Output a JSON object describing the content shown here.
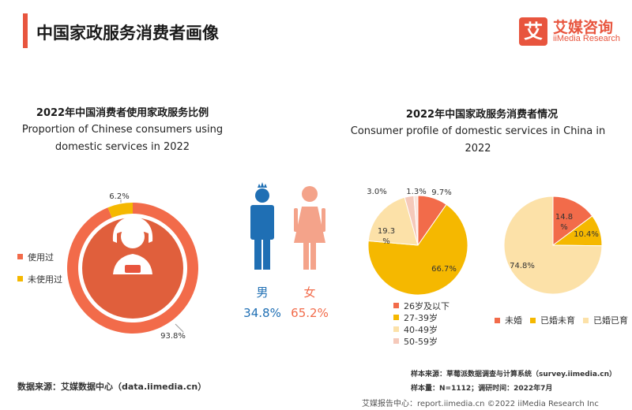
{
  "page": {
    "title": "中国家政服务消费者画像"
  },
  "brand": {
    "logo_char": "艾",
    "name_cn": "艾媒咨询",
    "name_en": "iiMedia Research"
  },
  "colors": {
    "accent": "#E8553E",
    "orange": "#F26B4A",
    "gold": "#F5B800",
    "light_gold": "#FCE1A8",
    "pale_pink": "#F5C9BA",
    "male_blue": "#1F6FB4",
    "female_pink": "#F4A38A"
  },
  "left_panel": {
    "title": "2022年中国消费者使用家政服务比例",
    "subtitle_line1": "Proportion of Chinese consumers using",
    "subtitle_line2": "domestic services in 2022",
    "legend": [
      "使用过",
      "未使用过"
    ]
  },
  "right_panel": {
    "title": "2022年中国家政服务消费者情况",
    "subtitle": "Consumer profile of domestic services in China in 2022",
    "age_legend": [
      "26岁及以下",
      "27-39岁",
      "40-49岁",
      "50-59岁"
    ],
    "marital_legend": [
      "未婚",
      "已婚未育",
      "已婚已育"
    ]
  },
  "gender": {
    "male_label": "男",
    "male_pct": "34.8%",
    "female_label": "女",
    "female_pct": "65.2%"
  },
  "chart_data": [
    {
      "type": "pie",
      "title": "2022年中国消费者使用家政服务比例",
      "categories": [
        "使用过",
        "未使用过"
      ],
      "values": [
        93.8,
        6.2
      ],
      "labels": [
        "93.8%",
        "6.2%"
      ]
    },
    {
      "type": "pie",
      "categories": [
        "男",
        "女"
      ],
      "values": [
        34.8,
        65.2
      ]
    },
    {
      "type": "pie",
      "categories": [
        "26岁及以下",
        "27-39岁",
        "40-49岁",
        "50-59岁",
        ""
      ],
      "values": [
        9.7,
        66.7,
        19.3,
        3.0,
        1.3
      ],
      "labels": [
        "9.7%",
        "66.7%",
        "19.3\n%",
        "3.0%",
        "1.3%"
      ]
    },
    {
      "type": "pie",
      "categories": [
        "未婚",
        "已婚未育",
        "已婚已育"
      ],
      "values": [
        14.8,
        10.4,
        74.8
      ],
      "labels": [
        "14.8\n%",
        "10.4%",
        "74.8%"
      ]
    }
  ],
  "footer": {
    "source_left": "数据来源：艾媒数据中心（data.iimedia.cn）",
    "note_line1": "样本来源：草莓派数据调查与计算系统（survey.iimedia.cn）",
    "note_line2": "样本量：N=1112；调研时间：2022年7月",
    "report_center": "艾媒报告中心：report.iimedia.cn  ©2022  iiMedia Research  Inc"
  }
}
